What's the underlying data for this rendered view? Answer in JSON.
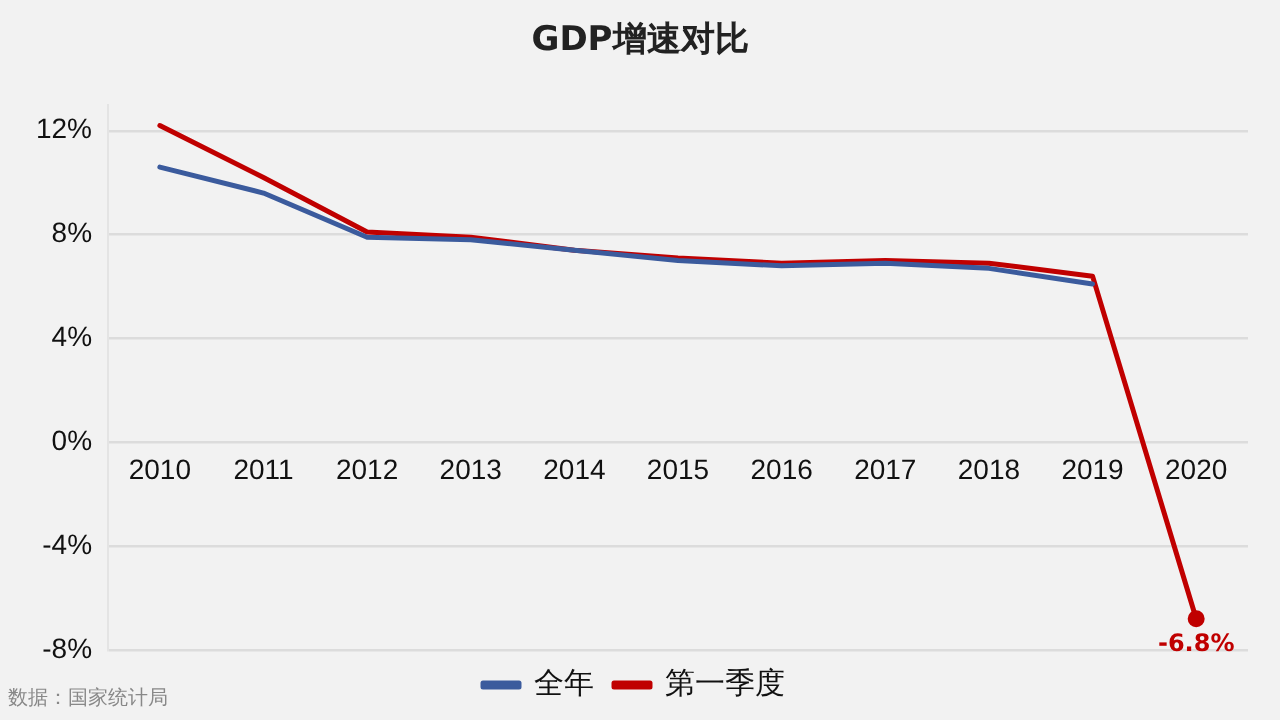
{
  "chart_data": {
    "type": "line",
    "title": "GDP增速对比",
    "categories": [
      "2010",
      "2011",
      "2012",
      "2013",
      "2014",
      "2015",
      "2016",
      "2017",
      "2018",
      "2019",
      "2020"
    ],
    "series": [
      {
        "name": "全年",
        "color": "#3b5b9d",
        "values": [
          10.6,
          9.6,
          7.9,
          7.8,
          7.4,
          7.0,
          6.8,
          6.9,
          6.7,
          6.1,
          null
        ]
      },
      {
        "name": "第一季度",
        "color": "#c00000",
        "values": [
          12.2,
          10.2,
          8.1,
          7.9,
          7.4,
          7.1,
          6.9,
          7.0,
          6.9,
          6.4,
          -6.8
        ],
        "value_labels": [
          null,
          null,
          null,
          null,
          null,
          null,
          null,
          null,
          null,
          null,
          "-6.8%"
        ]
      }
    ],
    "ylim": [
      -8,
      13
    ],
    "yticks": [
      {
        "value": -8,
        "label": "-8%"
      },
      {
        "value": -4,
        "label": "-4%"
      },
      {
        "value": 0,
        "label": "0%"
      },
      {
        "value": 4,
        "label": "4%"
      },
      {
        "value": 8,
        "label": "8%"
      },
      {
        "value": 12,
        "label": "12%"
      }
    ],
    "grid": "y",
    "legend": "bottom",
    "marker": "none",
    "line_style": "solid",
    "annotations": [
      "数据：国家统计局"
    ]
  }
}
